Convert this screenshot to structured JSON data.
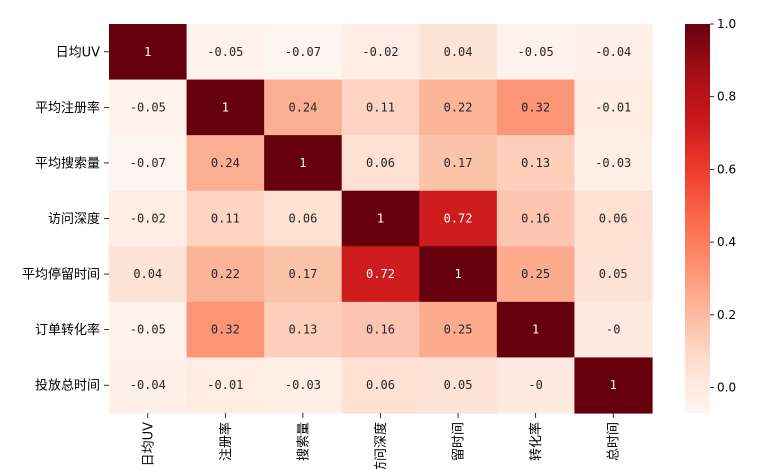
{
  "chart_data": {
    "type": "heatmap",
    "title": "",
    "row_labels": [
      "日均UV",
      "平均注册率",
      "平均搜索量",
      "访问深度",
      "平均停留时间",
      "订单转化率",
      "投放总时间"
    ],
    "col_labels": [
      "日均UV",
      "注册率",
      "搜索量",
      "访问深度",
      "留时间",
      "转化率",
      "总时间"
    ],
    "values": [
      [
        1,
        -0.05,
        -0.07,
        -0.02,
        0.04,
        -0.05,
        -0.04
      ],
      [
        -0.05,
        1,
        0.24,
        0.11,
        0.22,
        0.32,
        -0.01
      ],
      [
        -0.07,
        0.24,
        1,
        0.06,
        0.17,
        0.13,
        -0.03
      ],
      [
        -0.02,
        0.11,
        0.06,
        1,
        0.72,
        0.16,
        0.06
      ],
      [
        0.04,
        0.22,
        0.17,
        0.72,
        1,
        0.25,
        0.05
      ],
      [
        -0.05,
        0.32,
        0.13,
        0.16,
        0.25,
        1,
        -0.0
      ],
      [
        -0.04,
        -0.01,
        -0.03,
        0.06,
        0.05,
        -0.0,
        1
      ]
    ],
    "cell_text": [
      [
        "1",
        "-0.05",
        "-0.07",
        "-0.02",
        "0.04",
        "-0.05",
        "-0.04"
      ],
      [
        "-0.05",
        "1",
        "0.24",
        "0.11",
        "0.22",
        "0.32",
        "-0.01"
      ],
      [
        "-0.07",
        "0.24",
        "1",
        "0.06",
        "0.17",
        "0.13",
        "-0.03"
      ],
      [
        "-0.02",
        "0.11",
        "0.06",
        "1",
        "0.72",
        "0.16",
        "0.06"
      ],
      [
        "0.04",
        "0.22",
        "0.17",
        "0.72",
        "1",
        "0.25",
        "0.05"
      ],
      [
        "-0.05",
        "0.32",
        "0.13",
        "0.16",
        "0.25",
        "1",
        "-0"
      ],
      [
        "-0.04",
        "-0.01",
        "-0.03",
        "0.06",
        "0.05",
        "-0",
        "1"
      ]
    ],
    "colormap": "Reds",
    "vmin": -0.07,
    "vmax": 1.0,
    "colorbar_ticks": [
      0.0,
      0.2,
      0.4,
      0.6,
      0.8,
      1.0
    ],
    "colorbar_tick_labels": [
      "0.0",
      "0.2",
      "0.4",
      "0.6",
      "0.8",
      "1.0"
    ],
    "colors": {
      "low": "#fff5f0",
      "high": "#67000d",
      "text_dark": "#262626",
      "text_light": "#ffffff"
    }
  }
}
